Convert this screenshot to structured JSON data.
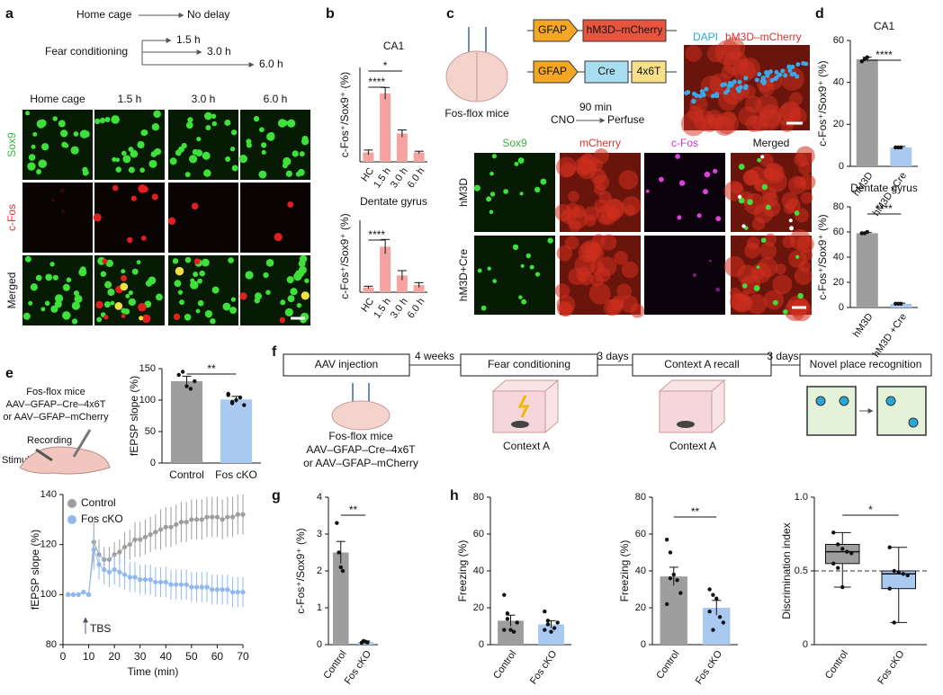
{
  "panel_labels": [
    "a",
    "b",
    "c",
    "d",
    "e",
    "f",
    "g",
    "h"
  ],
  "panel_a": {
    "home_cage": "Home cage",
    "no_delay": "No delay",
    "fear_conditioning": "Fear conditioning",
    "delays": [
      "1.5 h",
      "3.0 h",
      "6.0 h"
    ],
    "columns": [
      "Home cage",
      "1.5 h",
      "3.0 h",
      "6.0 h"
    ],
    "rows": [
      "Sox9",
      "c-Fos",
      "Merged"
    ]
  },
  "panel_c": {
    "constructs": [
      {
        "promoter": "GFAP",
        "gene": "hM3D–mCherry"
      },
      {
        "promoter": "GFAP",
        "gene": "Cre",
        "tag": "4x6T"
      }
    ],
    "mouse": "Fos-flox mice",
    "duration": "90 min",
    "cno": "CNO",
    "perfuse": "Perfuse",
    "inset_labels": [
      "DAPI",
      "hM3D–mCherry"
    ],
    "columns": [
      "Sox9",
      "mCherry",
      "c-Fos",
      "Merged"
    ],
    "rows": [
      "hM3D",
      "hM3D+Cre"
    ]
  },
  "panel_e": {
    "mouse": "Fos-flox mice",
    "virus": [
      "AAV–GFAP–Cre–4x6T",
      "or AAV–GFAP–mCherry"
    ],
    "recording": "Recording",
    "stimulation": "Stimulation"
  },
  "panel_f": {
    "steps": [
      "AAV injection",
      "Fear conditioning",
      "Context A recall",
      "Novel place recognition"
    ],
    "intervals": [
      "4 weeks",
      "3 days",
      "3 days"
    ],
    "mouse": "Fos-flox mice",
    "virus": [
      "AAV–GFAP–Cre–4x6T",
      "or AAV–GFAP–mCherry"
    ],
    "contexts": [
      "Context A",
      "Context A"
    ]
  },
  "chart_data": [
    {
      "type": "bar",
      "title": "CA1",
      "y_label": "c-Fos⁺/Sox9⁺ (%)",
      "categories": [
        "HC",
        "1.5 h",
        "3.0 h",
        "6.0 h"
      ],
      "values": [
        0.4,
        2.9,
        1.2,
        0.4
      ],
      "errors": [
        0.1,
        0.25,
        0.15,
        0.05
      ],
      "colors": [
        "#f4a3a0",
        "#f4a3a0",
        "#f4a3a0",
        "#f4a3a0"
      ],
      "ylim": [
        0,
        4
      ],
      "significance": [
        "****",
        "*"
      ]
    },
    {
      "type": "bar",
      "title": "Dentate gyrus",
      "y_label": "c-Fos⁺/Sox9⁺ (%)",
      "categories": [
        "HC",
        "1.5 h",
        "3.0 h",
        "6.0 h"
      ],
      "values": [
        0.2,
        1.9,
        0.7,
        0.3
      ],
      "errors": [
        0.05,
        0.3,
        0.2,
        0.1
      ],
      "colors": [
        "#f4a3a0",
        "#f4a3a0",
        "#f4a3a0",
        "#f4a3a0"
      ],
      "ylim": [
        0,
        3
      ],
      "significance": [
        "****"
      ]
    },
    {
      "type": "bar",
      "title": "CA1",
      "y_label": "c-Fos⁺/Sox9⁺ (%)",
      "categories": [
        "hM3D",
        "hM3D +Cre"
      ],
      "values": [
        51,
        9
      ],
      "errors": [
        1,
        0.5
      ],
      "colors": [
        "#9e9e9e",
        "#a9c9f0"
      ],
      "ylim": [
        0,
        60
      ],
      "yticks": [
        0,
        20,
        40,
        60
      ],
      "points": [
        [
          50,
          51,
          52
        ],
        [
          9,
          9,
          9
        ]
      ],
      "significance": [
        "****"
      ]
    },
    {
      "type": "bar",
      "title": "Dentate gyrus",
      "y_label": "c-Fos⁺/Sox9⁺ (%)",
      "categories": [
        "hM3D",
        "hM3D +Cre"
      ],
      "values": [
        59,
        3
      ],
      "errors": [
        0.5,
        0.5
      ],
      "colors": [
        "#9e9e9e",
        "#a9c9f0"
      ],
      "ylim": [
        0,
        80
      ],
      "yticks": [
        0,
        20,
        40,
        60,
        80
      ],
      "points": [
        [
          59,
          59,
          60
        ],
        [
          3,
          3,
          3
        ]
      ],
      "significance": [
        "****"
      ]
    },
    {
      "type": "bar",
      "y_label": "fEPSP slope (%)",
      "categories": [
        "Control",
        "Fos cKO"
      ],
      "values": [
        130,
        101
      ],
      "errors": [
        8,
        5
      ],
      "colors": [
        "#9e9e9e",
        "#a9c9f0"
      ],
      "ylim": [
        0,
        150
      ],
      "yticks": [
        0,
        50,
        100,
        150
      ],
      "points": [
        [
          140,
          145,
          122,
          118,
          130
        ],
        [
          110,
          97,
          100,
          104,
          92,
          108,
          95
        ]
      ],
      "significance": [
        "**"
      ]
    },
    {
      "type": "line",
      "y_label": "fEPSP slope (%)",
      "x_label": "Time (min)",
      "x": [
        2,
        4,
        6,
        8,
        10,
        12,
        14,
        16,
        18,
        20,
        22,
        24,
        26,
        28,
        30,
        32,
        34,
        36,
        38,
        40,
        42,
        44,
        46,
        48,
        50,
        52,
        54,
        56,
        58,
        60,
        62,
        64,
        66,
        68,
        70
      ],
      "xlim": [
        0,
        70
      ],
      "xticks": [
        0,
        10,
        20,
        30,
        40,
        50,
        60,
        70
      ],
      "ylim": [
        80,
        140
      ],
      "yticks": [
        80,
        100,
        120,
        140
      ],
      "annotation": "TBS",
      "series": [
        {
          "name": "Control",
          "color": "#9e9e9e",
          "values": [
            100,
            100,
            100,
            101,
            100,
            121,
            116,
            114,
            114,
            116,
            117,
            119,
            120,
            122,
            122,
            123,
            124,
            125,
            126,
            127,
            127,
            128,
            129,
            129,
            130,
            130,
            130,
            131,
            131,
            131,
            130,
            131,
            131,
            132,
            132
          ],
          "errors": [
            1,
            1,
            1,
            1,
            1,
            8,
            6,
            5,
            5,
            5,
            5,
            6,
            6,
            7,
            7,
            7,
            7,
            7,
            8,
            8,
            8,
            8,
            8,
            8,
            8,
            8,
            8,
            8,
            8,
            8,
            8,
            8,
            8,
            8,
            8
          ]
        },
        {
          "name": "Fos cKO",
          "color": "#8fb8ee",
          "values": [
            100,
            100,
            100,
            101,
            100,
            118,
            112,
            110,
            109,
            110,
            109,
            108,
            107,
            107,
            106,
            106,
            106,
            105,
            105,
            105,
            104,
            104,
            104,
            104,
            103,
            103,
            103,
            103,
            102,
            102,
            102,
            102,
            101,
            101,
            101
          ],
          "errors": [
            1,
            1,
            1,
            1,
            1,
            8,
            6,
            6,
            6,
            6,
            6,
            6,
            6,
            6,
            6,
            6,
            6,
            6,
            6,
            6,
            6,
            6,
            6,
            6,
            6,
            6,
            6,
            6,
            6,
            6,
            6,
            6,
            6,
            6,
            6
          ]
        }
      ]
    },
    {
      "type": "bar",
      "y_label": "c-Fos⁺/Sox9⁺ (%)",
      "categories": [
        "Control",
        "Fos cKO"
      ],
      "values": [
        2.5,
        0.07
      ],
      "errors": [
        0.3,
        0.03
      ],
      "colors": [
        "#9e9e9e",
        "#a9c9f0"
      ],
      "ylim": [
        0,
        4
      ],
      "yticks": [
        0,
        1,
        2,
        3,
        4
      ],
      "points": [
        [
          3.3,
          2.5,
          2.1,
          2.0
        ],
        [
          0.05,
          0.1,
          0.08,
          0.06
        ]
      ],
      "significance": [
        "**"
      ]
    },
    {
      "type": "bar",
      "y_label": "Freezing (%)",
      "categories": [
        "Control",
        "Fos cKO"
      ],
      "values": [
        13,
        11
      ],
      "errors": [
        3,
        2
      ],
      "colors": [
        "#9e9e9e",
        "#a9c9f0"
      ],
      "ylim": [
        0,
        80
      ],
      "yticks": [
        0,
        20,
        40,
        60,
        80
      ],
      "points": [
        [
          27,
          17,
          8,
          7,
          12,
          8,
          14
        ],
        [
          18,
          13,
          7,
          9,
          12,
          8,
          11
        ]
      ]
    },
    {
      "type": "bar",
      "y_label": "Freezing (%)",
      "categories": [
        "Control",
        "Fos cKO"
      ],
      "values": [
        37,
        20
      ],
      "errors": [
        5,
        4
      ],
      "colors": [
        "#9e9e9e",
        "#a9c9f0"
      ],
      "ylim": [
        0,
        80
      ],
      "yticks": [
        0,
        20,
        40,
        60,
        80
      ],
      "points": [
        [
          57,
          50,
          38,
          35,
          28,
          22,
          36
        ],
        [
          30,
          27,
          25,
          15,
          12,
          18,
          8
        ]
      ],
      "significance": [
        "**"
      ]
    },
    {
      "type": "box",
      "y_label": "Discrimination index",
      "categories": [
        "Control",
        "Fos cKO"
      ],
      "boxes": [
        {
          "min": 0.39,
          "q1": 0.55,
          "median": 0.63,
          "q3": 0.68,
          "max": 0.76
        },
        {
          "min": 0.15,
          "q1": 0.38,
          "median": 0.48,
          "q3": 0.5,
          "max": 0.66
        }
      ],
      "colors": [
        "#9e9e9e",
        "#a9c9f0"
      ],
      "ylim": [
        0,
        1
      ],
      "yticks": [
        0,
        0.5,
        {
          "value": 1,
          "label": "1.0"
        }
      ],
      "reference_line": 0.5,
      "points": [
        [
          0.76,
          0.68,
          0.65,
          0.63,
          0.62,
          0.55,
          0.52,
          0.39
        ],
        [
          0.66,
          0.5,
          0.49,
          0.48,
          0.47,
          0.38,
          0.15
        ]
      ],
      "significance": [
        "*"
      ]
    }
  ]
}
